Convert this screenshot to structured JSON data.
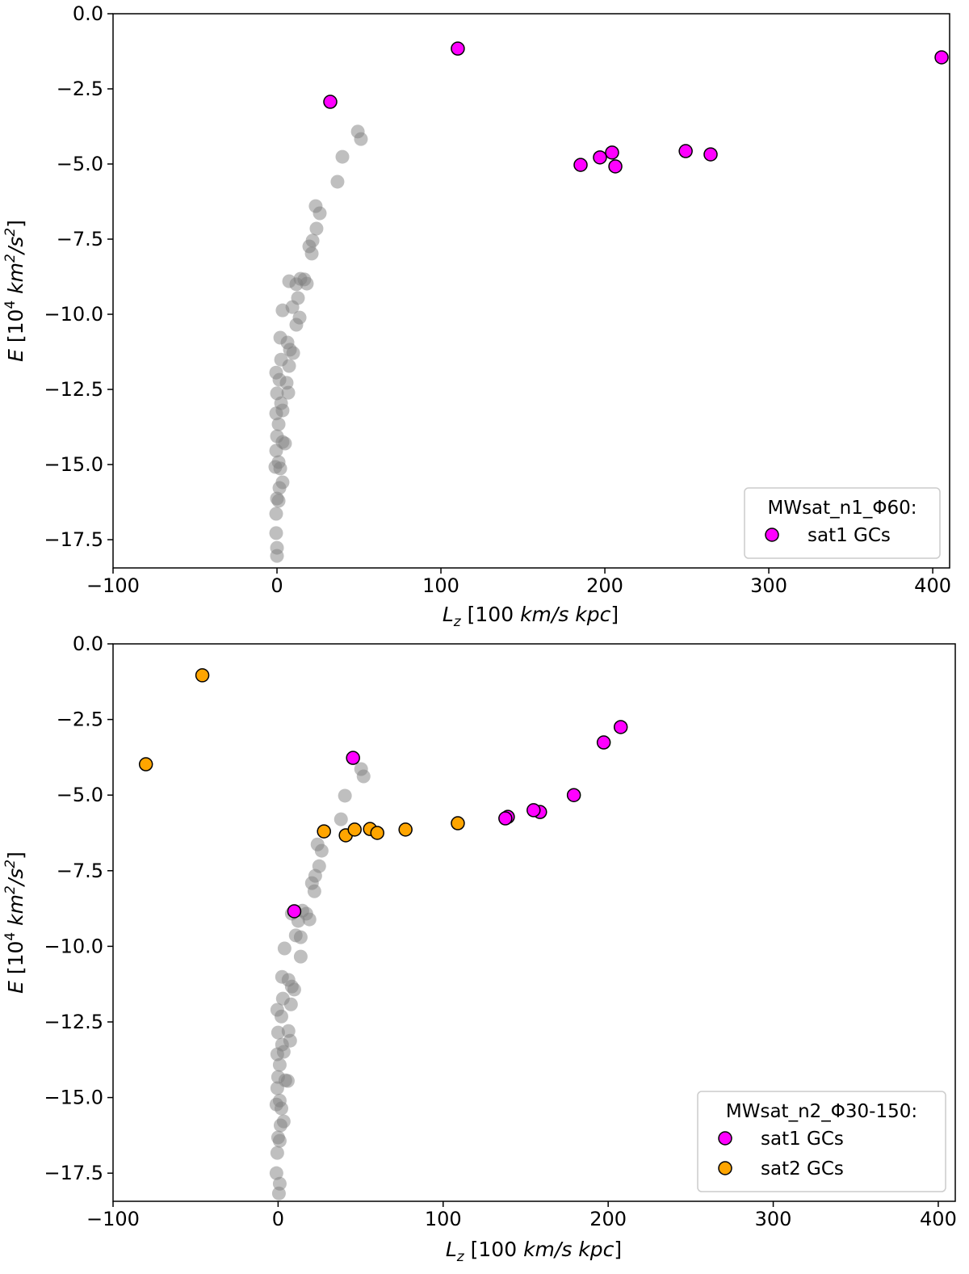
{
  "chart_data": [
    {
      "type": "scatter",
      "xlabel": [
        "L",
        "z",
        " [100 ",
        "km/s kpc",
        "]"
      ],
      "ylabel": [
        "E",
        " [10",
        "4",
        " ",
        "km",
        "2",
        "/",
        "s",
        "2",
        "]"
      ],
      "xlim": [
        -100,
        410.3
      ],
      "ylim": [
        -18.44,
        0
      ],
      "xticks": [
        {
          "value": -100,
          "label": "−100"
        },
        0,
        100,
        200,
        300,
        400
      ],
      "yticks": [
        {
          "value": 0,
          "label": "0.0"
        },
        {
          "value": -2.5,
          "label": "−2.5"
        },
        {
          "value": -5,
          "label": "−5.0"
        },
        {
          "value": -7.5,
          "label": "−7.5"
        },
        {
          "value": -10,
          "label": "−10.0"
        },
        {
          "value": -12.5,
          "label": "−12.5"
        },
        {
          "value": -15,
          "label": "−15.0"
        },
        {
          "value": -17.5,
          "label": "−17.5"
        }
      ],
      "legend_title": "MWsat_n1_Φ60:",
      "legend": "lower right",
      "series": [
        {
          "color": "#808080",
          "x": [
            49.3,
            51.2,
            39.9,
            36.9,
            23.6,
            26.1,
            24.1,
            21.7,
            19.7,
            21.2,
            7.4,
            14.3,
            16.7,
            18.2,
            11.8,
            3.4,
            9.4,
            12.8,
            13.8,
            11.8,
            2,
            6.4,
            7.9,
            9.9,
            2.5,
            7.4,
            -0.5,
            1.5,
            5.9,
            0,
            6.9,
            2.5,
            -0.5,
            3.4,
            1,
            0,
            3.4,
            4.9,
            -0.5,
            1,
            -1,
            2,
            3.4,
            1.5,
            0,
            1,
            -0.5,
            -0.5,
            0,
            0
          ],
          "values": [
            -3.92,
            -4.17,
            -4.76,
            -5.59,
            -6.4,
            -6.64,
            -7.15,
            -7.55,
            -7.74,
            -7.98,
            -8.9,
            -8.82,
            -8.84,
            -8.98,
            -9.0,
            -9.87,
            -9.76,
            -9.46,
            -10.11,
            -10.35,
            -10.78,
            -10.94,
            -11.18,
            -11.29,
            -11.51,
            -11.72,
            -11.94,
            -12.18,
            -12.28,
            -12.63,
            -12.61,
            -12.96,
            -13.3,
            -13.2,
            -13.66,
            -14.06,
            -14.25,
            -14.3,
            -14.54,
            -14.92,
            -15.08,
            -15.13,
            -15.59,
            -15.78,
            -16.13,
            -16.21,
            -16.64,
            -17.28,
            -17.77,
            -18.04
          ]
        },
        {
          "name": "sat1 GCs",
          "color": "#ff00ff",
          "x": [
            110.3,
            405.4,
            32.5,
            185.2,
            197,
            204.4,
            206.4,
            249.3,
            264.5
          ],
          "values": [
            -1.16,
            -1.45,
            -2.93,
            -5.03,
            -4.78,
            -4.62,
            -5.08,
            -4.57,
            -4.68
          ]
        }
      ]
    },
    {
      "type": "scatter",
      "xlabel": [
        "L",
        "z",
        " [100 ",
        "km/s kpc",
        "]"
      ],
      "ylabel": [
        "E",
        " [10",
        "4",
        " ",
        "km",
        "2",
        "/",
        "s",
        "2",
        "]"
      ],
      "xlim": [
        -100,
        410.3
      ],
      "ylim": [
        -18.43,
        0
      ],
      "xticks": [
        {
          "value": -100,
          "label": "−100"
        },
        0,
        100,
        200,
        300,
        400
      ],
      "yticks": [
        {
          "value": 0,
          "label": "0.0"
        },
        {
          "value": -2.5,
          "label": "−2.5"
        },
        {
          "value": -5,
          "label": "−5.0"
        },
        {
          "value": -7.5,
          "label": "−7.5"
        },
        {
          "value": -10,
          "label": "−10.0"
        },
        {
          "value": -12.5,
          "label": "−12.5"
        },
        {
          "value": -15,
          "label": "−15.0"
        },
        {
          "value": -17.5,
          "label": "−17.5"
        }
      ],
      "legend_title": "MWsat_n2_Φ30-150:",
      "legend": "lower right",
      "series": [
        {
          "color": "#808080",
          "x": [
            50.3,
            51.8,
            40.5,
            38.1,
            23.9,
            26.4,
            24.9,
            22.5,
            20.5,
            22,
            8.3,
            14.7,
            17.1,
            19,
            12.2,
            3.9,
            10.7,
            13.7,
            13.7,
            2.4,
            6.3,
            8.3,
            9.8,
            2.9,
            7.8,
            -0.5,
            2,
            6.3,
            0,
            7.3,
            2.4,
            -0.5,
            3.4,
            1,
            0,
            4.4,
            5.9,
            -0.5,
            1,
            -1,
            2,
            3.4,
            1.5,
            0,
            1,
            -0.5,
            -1,
            1,
            0.5
          ],
          "values": [
            -4.14,
            -4.38,
            -5.02,
            -5.8,
            -6.63,
            -6.84,
            -7.35,
            -7.67,
            -7.91,
            -8.18,
            -8.92,
            -8.82,
            -8.92,
            -9.11,
            -9.16,
            -10.07,
            -9.64,
            -9.7,
            -10.34,
            -11.01,
            -11.11,
            -11.33,
            -11.43,
            -11.73,
            -11.92,
            -12.1,
            -12.32,
            -12.8,
            -12.85,
            -13.12,
            -13.25,
            -13.57,
            -13.49,
            -13.92,
            -14.32,
            -14.43,
            -14.45,
            -14.69,
            -15.1,
            -15.23,
            -15.36,
            -15.79,
            -15.92,
            -16.32,
            -16.43,
            -16.83,
            -17.5,
            -17.85,
            -18.17
          ]
        },
        {
          "name": "sat1 GCs",
          "color": "#ff00ff",
          "x": [
            45.4,
            207.6,
            197.3,
            179.2,
            158.7,
            154.8,
            139.2,
            137.7,
            9.8
          ],
          "values": [
            -3.77,
            -2.75,
            -3.26,
            -5.0,
            -5.56,
            -5.5,
            -5.72,
            -5.77,
            -8.84
          ]
        },
        {
          "name": "sat2 GCs",
          "color": "#ffa500",
          "x": [
            -45.9,
            -80.1,
            27.8,
            41,
            46.4,
            55.7,
            60.1,
            77.2,
            108.9
          ],
          "values": [
            -1.04,
            -3.98,
            -6.2,
            -6.33,
            -6.14,
            -6.12,
            -6.25,
            -6.14,
            -5.93
          ]
        }
      ]
    }
  ]
}
